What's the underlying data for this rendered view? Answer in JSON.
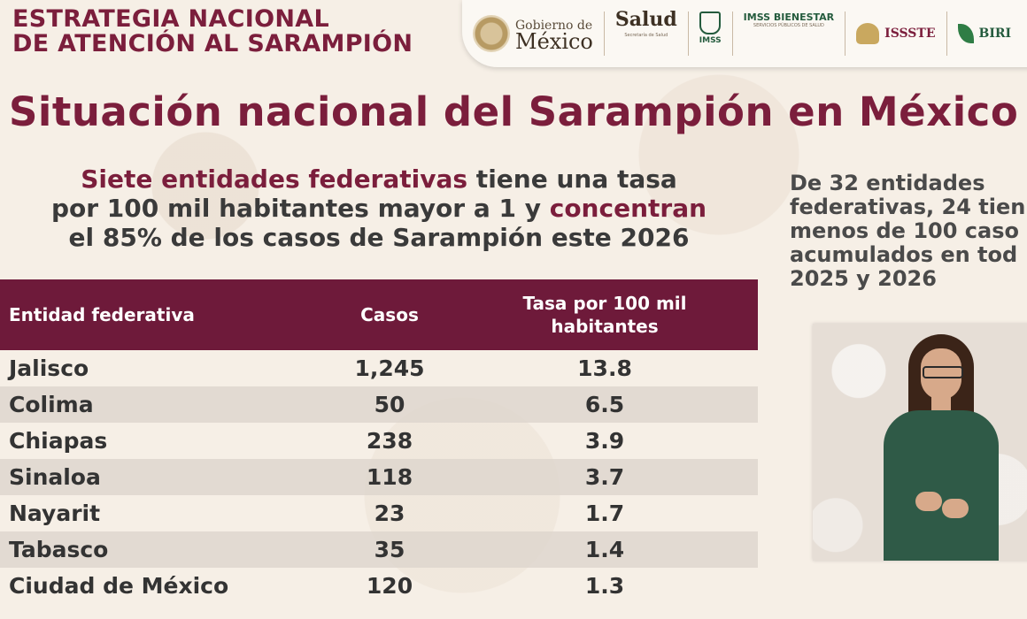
{
  "header": {
    "title_line1": "ESTRATEGIA NACIONAL",
    "title_line2": "DE ATENCIÓN AL SARAMPIÓN"
  },
  "logos": {
    "gobierno_line1": "Gobierno de",
    "gobierno_line2": "México",
    "salud": "Salud",
    "salud_sub": "Secretaría de Salud",
    "imss": "IMSS",
    "imss_bienestar": "IMSS BIENESTAR",
    "imss_bienestar_sub": "SERVICIOS PÚBLICOS DE SALUD",
    "issste": "ISSSTE",
    "birmex": "BIRI"
  },
  "main_title": "Situación nacional del Sarampión en México",
  "subtitle": {
    "hl1": "Siete entidades federativas",
    "t1": " tiene una tasa",
    "t2": "por 100 mil habitantes mayor a 1 y ",
    "hl2": "concentran",
    "t3": "el 85% de los casos de Sarampión este 2026"
  },
  "table": {
    "headers": {
      "entity": "Entidad federativa",
      "cases": "Casos",
      "rate_line1": "Tasa por 100 mil",
      "rate_line2": "habitantes"
    },
    "rows": [
      {
        "entity": "Jalisco",
        "cases": "1,245",
        "rate": "13.8"
      },
      {
        "entity": "Colima",
        "cases": "50",
        "rate": "6.5"
      },
      {
        "entity": "Chiapas",
        "cases": "238",
        "rate": "3.9"
      },
      {
        "entity": "Sinaloa",
        "cases": "118",
        "rate": "3.7"
      },
      {
        "entity": "Nayarit",
        "cases": "23",
        "rate": "1.7"
      },
      {
        "entity": "Tabasco",
        "cases": "35",
        "rate": "1.4"
      },
      {
        "entity": "Ciudad de México",
        "cases": "120",
        "rate": "1.3"
      }
    ]
  },
  "side_note": {
    "line1": "De 32 entidades",
    "line2": "federativas, 24 tien",
    "line3": "menos de 100 caso",
    "line4": "acumulados en tod",
    "line5": "2025 y 2026"
  }
}
